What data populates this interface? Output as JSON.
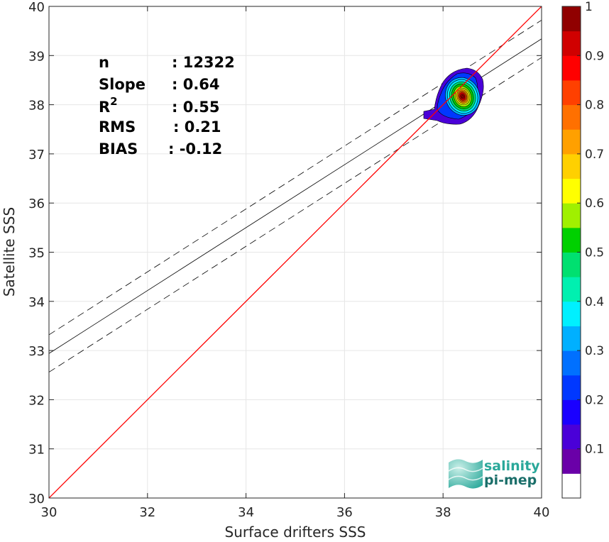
{
  "chart_data": {
    "type": "scatter",
    "xlabel": "Surface drifters SSS",
    "ylabel": "Satellite SSS",
    "xlim": [
      30,
      40
    ],
    "ylim": [
      30,
      40
    ],
    "xticks": [
      30,
      32,
      34,
      36,
      38,
      40
    ],
    "yticks": [
      30,
      31,
      32,
      33,
      34,
      35,
      36,
      37,
      38,
      39,
      40
    ],
    "grid": true,
    "stats": [
      {
        "label": "n",
        "value": ": 12322"
      },
      {
        "label": "Slope",
        "value": ": 0.64"
      },
      {
        "label": "R",
        "sup": "2",
        "value": ": 0.55"
      },
      {
        "label": "RMS",
        "value": ": 0.21"
      },
      {
        "label": "BIAS",
        "value": ": -0.12"
      }
    ],
    "identity_line": {
      "color": "#ff0000"
    },
    "fit_line": {
      "slope": 0.64,
      "intercept": 13.74
    },
    "fit_band_offset": 0.38,
    "density_center": [
      38.4,
      38.2
    ],
    "colorbar": {
      "range": [
        0,
        1
      ],
      "ticks": [
        0.1,
        0.2,
        0.3,
        0.4,
        0.5,
        0.6,
        0.7,
        0.8,
        0.9,
        1
      ],
      "tick_labels": [
        "0.1",
        "0.2",
        "0.3",
        "0.4",
        "0.5",
        "0.6",
        "0.7",
        "0.8",
        "0.9",
        "1"
      ],
      "colors": [
        "#ffffff",
        "#6a00a8",
        "#4a00d8",
        "#1a00ff",
        "#0038ff",
        "#0070ff",
        "#00b0ff",
        "#00f0ff",
        "#00f0b0",
        "#00e070",
        "#00d000",
        "#a0f000",
        "#ffff00",
        "#ffd000",
        "#ffa000",
        "#ff7000",
        "#ff4000",
        "#ff0000",
        "#d00000",
        "#900000"
      ]
    }
  },
  "logo": {
    "line1": "salinity",
    "line2": "pi-mep",
    "color1": "#2aa89a",
    "color2": "#1b6f6a"
  }
}
